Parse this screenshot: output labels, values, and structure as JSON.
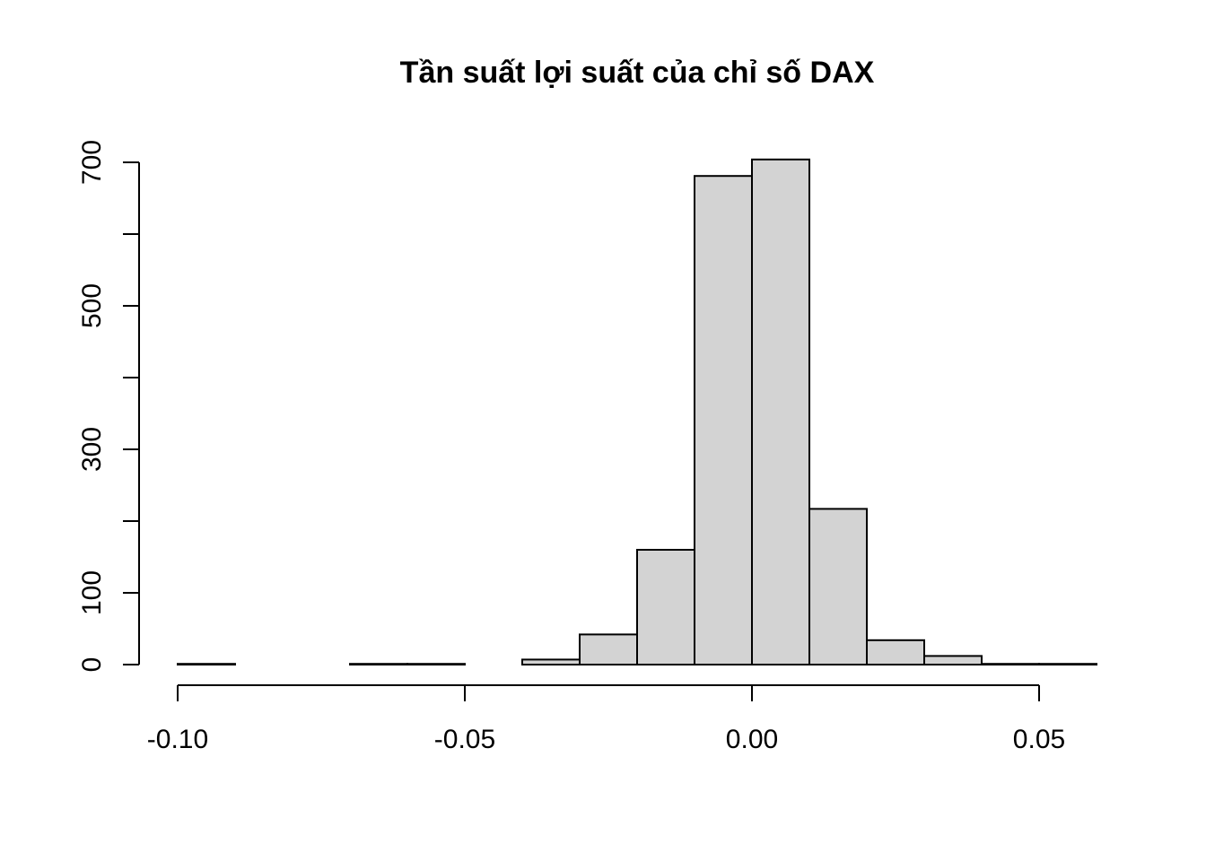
{
  "chart_data": {
    "type": "bar",
    "title": "Tần suất lợi suất của chỉ số DAX",
    "xlabel": "",
    "ylabel": "",
    "x_ticks": [
      -0.1,
      -0.05,
      0.0,
      0.05
    ],
    "x_tick_labels": [
      "-0.10",
      "-0.05",
      "0.00",
      "0.05"
    ],
    "y_ticks": [
      0,
      100,
      200,
      300,
      400,
      500,
      600,
      700
    ],
    "y_tick_labels": [
      "0",
      "100",
      "300",
      "500",
      "700"
    ],
    "y_labeled_ticks": [
      0,
      100,
      300,
      500,
      700
    ],
    "xlim": [
      -0.1,
      0.06
    ],
    "ylim": [
      0,
      700
    ],
    "bins": [
      {
        "start": -0.1,
        "end": -0.09,
        "count": 1
      },
      {
        "start": -0.09,
        "end": -0.08,
        "count": 0
      },
      {
        "start": -0.08,
        "end": -0.07,
        "count": 0
      },
      {
        "start": -0.07,
        "end": -0.06,
        "count": 1
      },
      {
        "start": -0.06,
        "end": -0.05,
        "count": 1
      },
      {
        "start": -0.05,
        "end": -0.04,
        "count": 0
      },
      {
        "start": -0.04,
        "end": -0.03,
        "count": 7
      },
      {
        "start": -0.03,
        "end": -0.02,
        "count": 42
      },
      {
        "start": -0.02,
        "end": -0.01,
        "count": 160
      },
      {
        "start": -0.01,
        "end": 0.0,
        "count": 681
      },
      {
        "start": 0.0,
        "end": 0.01,
        "count": 704
      },
      {
        "start": 0.01,
        "end": 0.02,
        "count": 217
      },
      {
        "start": 0.02,
        "end": 0.03,
        "count": 34
      },
      {
        "start": 0.03,
        "end": 0.04,
        "count": 12
      },
      {
        "start": 0.04,
        "end": 0.05,
        "count": 1
      },
      {
        "start": 0.05,
        "end": 0.06,
        "count": 1
      }
    ],
    "grid": false,
    "fill_color": "#d3d3d3",
    "edge_color": "#000000"
  }
}
